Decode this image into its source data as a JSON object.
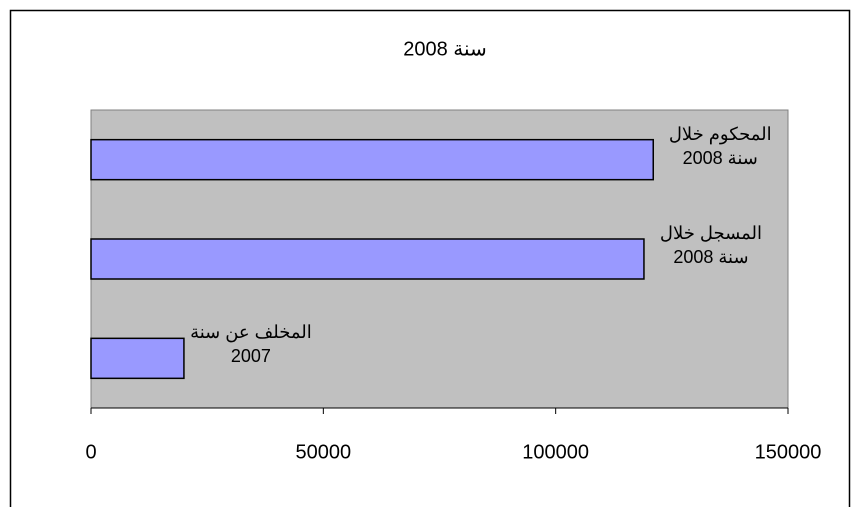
{
  "chart_data": {
    "type": "hbar",
    "title": "سنة 2008",
    "categories": [
      "المحكوم خلال سنة 2008",
      "المسجل خلال سنة 2008",
      "المخلف عن سنة 2007"
    ],
    "values": [
      121000,
      119000,
      20000
    ],
    "color": "#9999ff",
    "xlim": [
      0,
      150000
    ],
    "xticks": [
      0,
      50000,
      100000,
      150000
    ],
    "grid": false
  }
}
